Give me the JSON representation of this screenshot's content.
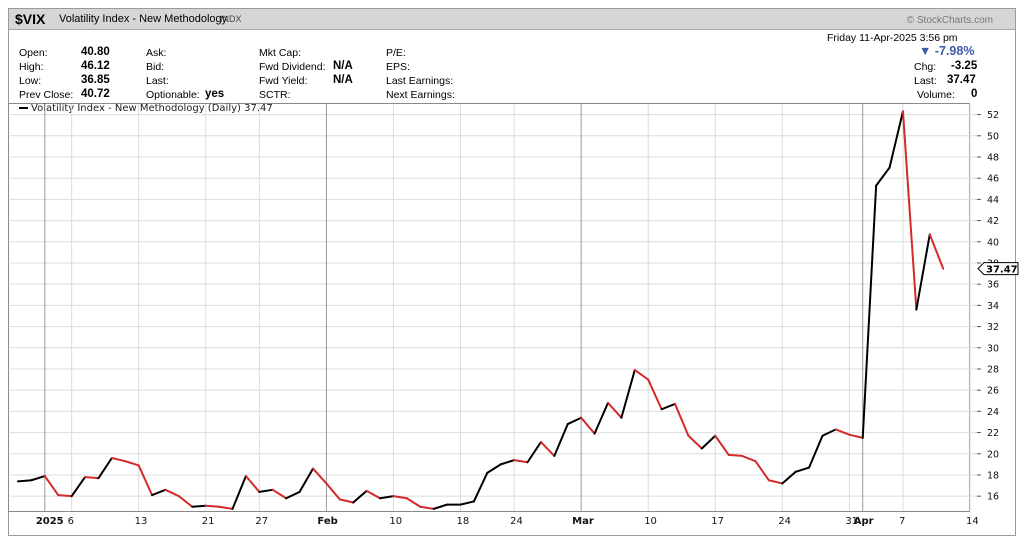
{
  "header": {
    "symbol": "$VIX",
    "name": "Volatility Index - New Methodology",
    "exchange": "INDX",
    "brand": "© StockCharts.com",
    "datetime": "Friday  11-Apr-2025  3:56 pm"
  },
  "quote": {
    "open_label": "Open:",
    "open": "40.80",
    "high_label": "High:",
    "high": "46.12",
    "low_label": "Low:",
    "low": "36.85",
    "prev_close_label": "Prev Close:",
    "prev_close": "40.72",
    "ask_label": "Ask:",
    "bid_label": "Bid:",
    "last_label": "Last:",
    "optionable_label": "Optionable:",
    "optionable": "yes",
    "mktcap_label": "Mkt Cap:",
    "fwd_div_label": "Fwd Dividend:",
    "fwd_div": "N/A",
    "fwd_yield_label": "Fwd Yield:",
    "fwd_yield": "N/A",
    "sctr_label": "SCTR:",
    "pe_label": "P/E:",
    "eps_label": "EPS:",
    "last_earnings_label": "Last Earnings:",
    "next_earnings_label": "Next Earnings:",
    "chg_pct": "▼ -7.98%",
    "chg_label": "Chg:",
    "chg": "-3.25",
    "last_label2": "Last:",
    "last": "37.47",
    "volume_label": "Volume:",
    "volume": "0"
  },
  "colors": {
    "up": "#000000",
    "down": "#d42a2a",
    "grid": "#dcdcdc",
    "pct": "#3b5aa6"
  },
  "chart_data": {
    "type": "line",
    "legend": "Volatility Index - New Methodology (Daily) 37.47",
    "last_value_label": "37.47",
    "ylim": [
      14.6,
      53.0
    ],
    "y_ticks": [
      16,
      18,
      20,
      22,
      24,
      26,
      28,
      30,
      32,
      34,
      36,
      38,
      40,
      42,
      44,
      46,
      48,
      50,
      52
    ],
    "x_ticks": [
      {
        "label": "2025",
        "index": 2,
        "bold": true
      },
      {
        "label": "6",
        "index": 4
      },
      {
        "label": "13",
        "index": 9
      },
      {
        "label": "21",
        "index": 14
      },
      {
        "label": "27",
        "index": 18
      },
      {
        "label": "Feb",
        "index": 23,
        "bold": true
      },
      {
        "label": "10",
        "index": 28
      },
      {
        "label": "18",
        "index": 33
      },
      {
        "label": "24",
        "index": 37
      },
      {
        "label": "Mar",
        "index": 42,
        "bold": true
      },
      {
        "label": "10",
        "index": 47
      },
      {
        "label": "17",
        "index": 52
      },
      {
        "label": "24",
        "index": 57
      },
      {
        "label": "31",
        "index": 62
      },
      {
        "label": "Apr",
        "index": 63,
        "bold": true
      },
      {
        "label": "7",
        "index": 66
      },
      {
        "label": "14",
        "index": 71
      }
    ],
    "x_count": 72,
    "series": [
      {
        "values": [
          17.4,
          17.5,
          17.9,
          16.1,
          16.0,
          17.8,
          17.7,
          19.6,
          19.3,
          18.9,
          16.1,
          16.6,
          16.0,
          15.0,
          15.1,
          15.0,
          14.8,
          17.9,
          16.4,
          16.6,
          15.8,
          16.4,
          18.6,
          17.2,
          15.7,
          15.4,
          16.5,
          15.8,
          16.0,
          15.8,
          15.0,
          14.8,
          15.2,
          15.2,
          15.5,
          18.2,
          19.0,
          19.4,
          19.2,
          21.1,
          19.8,
          22.8,
          23.4,
          21.9,
          24.8,
          23.4,
          27.9,
          27.0,
          24.2,
          24.7,
          21.7,
          20.5,
          21.7,
          19.9,
          19.8,
          19.3,
          17.5,
          17.2,
          18.3,
          18.7,
          21.7,
          22.3,
          21.8,
          21.5,
          45.3,
          47.0,
          52.3,
          33.6,
          40.7,
          37.47
        ]
      }
    ]
  }
}
